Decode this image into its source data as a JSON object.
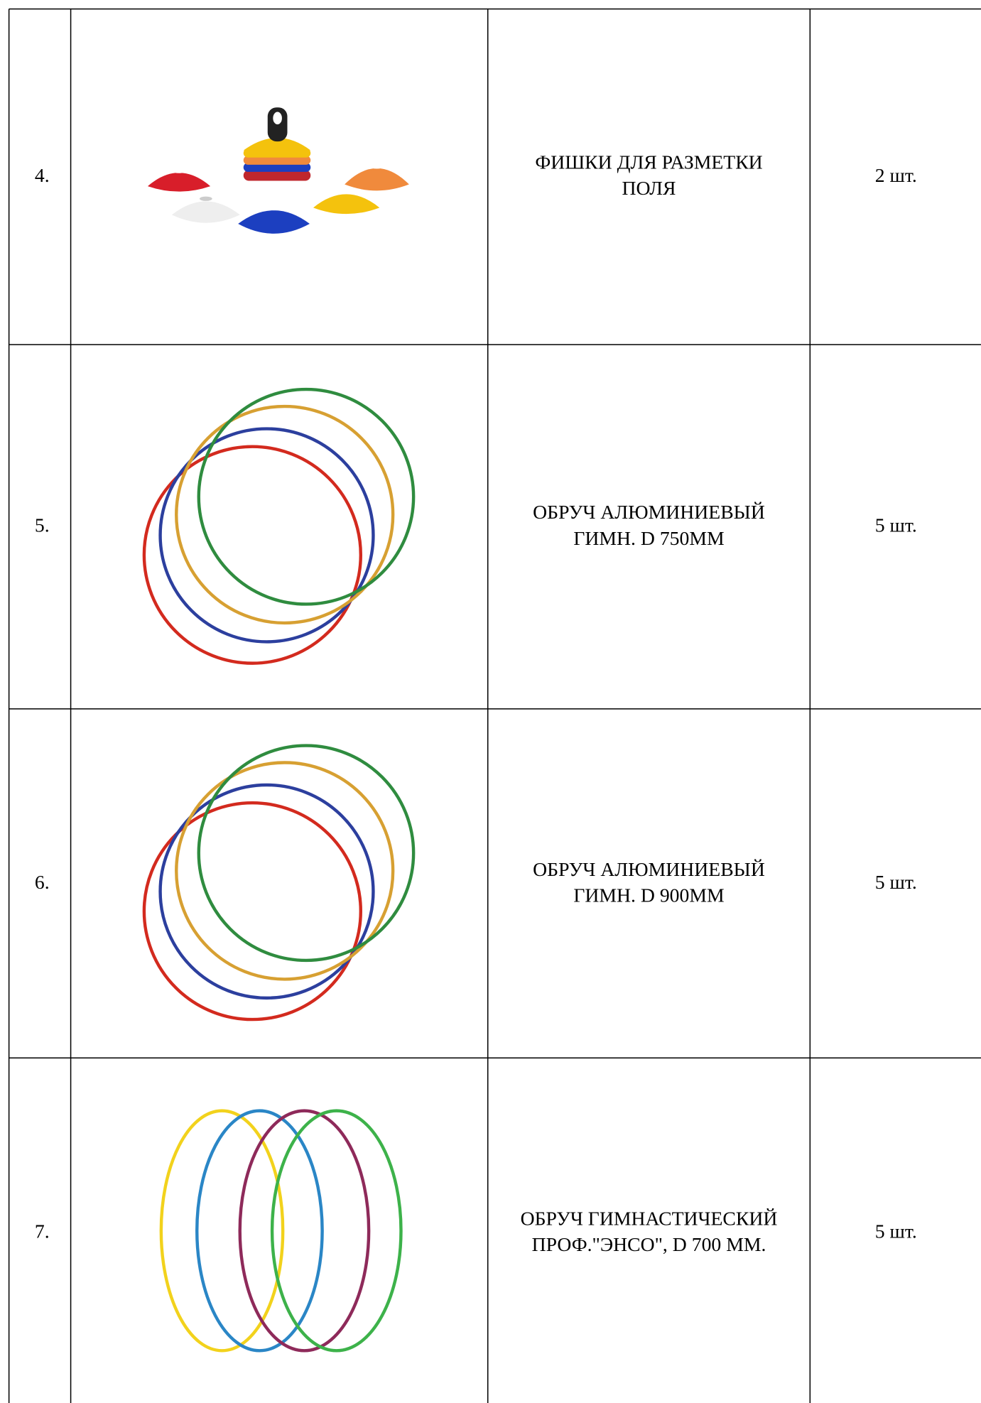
{
  "table": {
    "rows": [
      {
        "number": "4.",
        "name": [
          "ФИШКИ ДЛЯ РАЗМЕТКИ",
          "ПОЛЯ"
        ],
        "quantity": "2 шт."
      },
      {
        "number": "5.",
        "name": [
          "ОБРУЧ АЛЮМИНИЕВЫЙ",
          "ГИМН. D 750ММ"
        ],
        "quantity": "5 шт."
      },
      {
        "number": "6.",
        "name": [
          "ОБРУЧ АЛЮМИНИЕВЫЙ",
          "ГИМН. D 900ММ"
        ],
        "quantity": "5 шт."
      },
      {
        "number": "7.",
        "name": [
          "ОБРУЧ ГИМНАСТИЧЕСКИЙ",
          "ПРОФ.\"ЭНСО\", D 700 ММ."
        ],
        "quantity": "5 шт."
      }
    ]
  }
}
